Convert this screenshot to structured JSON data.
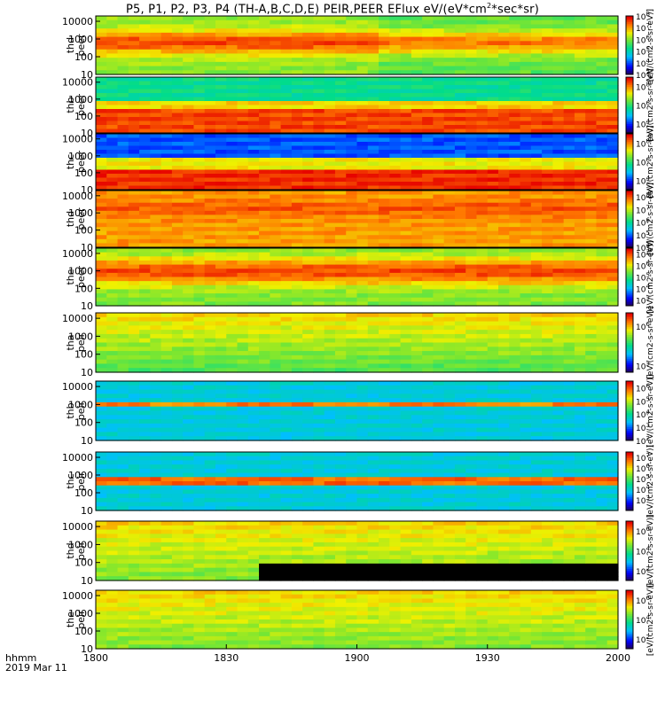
{
  "title": "P5, P1, P2, P3, P4 (TH-A,B,C,D,E) PEIR,PEER EFlux eV/(eV*cm",
  "title_sup": "2",
  "title_tail": "*sec*sr)",
  "time_axis_label": "hhmm",
  "date_label": "2019 Mar 11",
  "x_ticks": [
    "1800",
    "1830",
    "1900",
    "1930",
    "2000"
  ],
  "y_ticks": [
    "10",
    "100",
    "1000",
    "10000"
  ],
  "colorbar_label": "[eV/(cm2-s-sr-eV)]",
  "chart_data": [
    {
      "type": "heatmap",
      "ylabel": [
        "thd",
        "peer"
      ],
      "yscale": "log",
      "ylim": [
        10,
        20000
      ],
      "xlim": [
        "1800",
        "2000"
      ],
      "cbar_ticks": [
        "10^3",
        "10^4",
        "10^5",
        "10^6",
        "10^7",
        "10^8"
      ],
      "cbar_range": [
        3,
        8
      ]
    },
    {
      "type": "heatmap",
      "ylabel": [
        "thb",
        "peer"
      ],
      "yscale": "log",
      "ylim": [
        10,
        20000
      ],
      "xlim": [
        "1800",
        "2000"
      ],
      "cbar_ticks": [
        "10^4",
        "10^6",
        "10^8"
      ],
      "cbar_range": [
        3,
        9
      ]
    },
    {
      "type": "heatmap",
      "ylabel": [
        "thc",
        "peer"
      ],
      "yscale": "log",
      "ylim": [
        10,
        20000
      ],
      "xlim": [
        "1800",
        "2000"
      ],
      "cbar_ticks": [
        "10^4",
        "10^6",
        "10^8"
      ],
      "cbar_range": [
        3,
        9
      ]
    },
    {
      "type": "heatmap",
      "ylabel": [
        "thd",
        "peer"
      ],
      "yscale": "log",
      "ylim": [
        10,
        20000
      ],
      "xlim": [
        "1800",
        "2000"
      ],
      "cbar_ticks": [
        "10^4",
        "10^5",
        "10^6",
        "10^7",
        "10^8"
      ],
      "cbar_range": [
        4,
        8.5
      ]
    },
    {
      "type": "heatmap",
      "ylabel": [
        "the",
        "peer"
      ],
      "yscale": "log",
      "ylim": [
        10,
        20000
      ],
      "xlim": [
        "1800",
        "2000"
      ],
      "cbar_ticks": [
        "10^3",
        "10^4",
        "10^5",
        "10^6",
        "10^7"
      ],
      "cbar_range": [
        2.5,
        7.5
      ]
    },
    {
      "type": "heatmap",
      "ylabel": [
        "tha",
        "peir"
      ],
      "yscale": "log",
      "ylim": [
        10,
        20000
      ],
      "xlim": [
        "1800",
        "2000"
      ],
      "cbar_ticks": [
        "10^3",
        "10^6"
      ],
      "cbar_range": [
        2.5,
        7
      ]
    },
    {
      "type": "heatmap",
      "ylabel": [
        "thb",
        "peir"
      ],
      "yscale": "log",
      "ylim": [
        10,
        20000
      ],
      "xlim": [
        "1800",
        "2000"
      ],
      "cbar_ticks": [
        "10^2",
        "10^3",
        "10^4",
        "10^5",
        "10^6"
      ],
      "cbar_range": [
        2,
        6.5
      ]
    },
    {
      "type": "heatmap",
      "ylabel": [
        "thc",
        "peir"
      ],
      "yscale": "log",
      "ylim": [
        10,
        20000
      ],
      "xlim": [
        "1800",
        "2000"
      ],
      "cbar_ticks": [
        "10^3",
        "10^4",
        "10^5",
        "10^6",
        "10^7"
      ],
      "cbar_range": [
        2,
        7.5
      ]
    },
    {
      "type": "heatmap",
      "ylabel": [
        "thd",
        "peir"
      ],
      "yscale": "log",
      "ylim": [
        10,
        20000
      ],
      "xlim": [
        "1800",
        "2000"
      ],
      "cbar_ticks": [
        "10^2",
        "10^4",
        "10^6"
      ],
      "cbar_range": [
        1,
        7
      ]
    },
    {
      "type": "heatmap",
      "ylabel": [
        "the",
        "peir"
      ],
      "yscale": "log",
      "ylim": [
        10,
        20000
      ],
      "xlim": [
        "1800",
        "2000"
      ],
      "cbar_ticks": [
        "10^2",
        "10^4",
        "10^6"
      ],
      "cbar_range": [
        1,
        7
      ]
    }
  ]
}
